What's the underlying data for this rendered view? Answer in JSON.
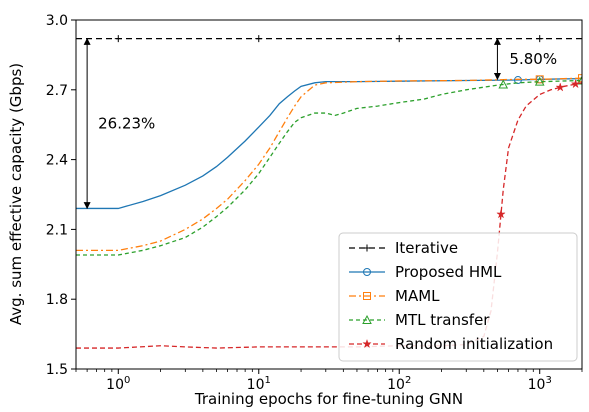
{
  "chart_data": {
    "type": "line",
    "xlabel": "Training epochs for fine-tuning GNN",
    "ylabel": "Avg. sum effective capacity (Gbps)",
    "xscale": "log",
    "xlim": [
      0.5,
      2000
    ],
    "ylim": [
      1.5,
      3.0
    ],
    "x_ticks": [
      {
        "value": 1,
        "base": "10",
        "exp": "0"
      },
      {
        "value": 10,
        "base": "10",
        "exp": "1"
      },
      {
        "value": 100,
        "base": "10",
        "exp": "2"
      },
      {
        "value": 1000,
        "base": "10",
        "exp": "3"
      }
    ],
    "y_ticks": [
      1.5,
      1.8,
      2.1,
      2.4,
      2.7,
      3.0
    ],
    "y_tick_labels": [
      "1.5",
      "1.8",
      "2.1",
      "2.4",
      "2.7",
      "3.0"
    ],
    "legend_position": "lower-right",
    "series": [
      {
        "name": "Iterative",
        "color": "#000000",
        "dash": "6,4",
        "marker": "plus",
        "points": [
          [
            0.5,
            2.92
          ],
          [
            2000,
            2.92
          ]
        ],
        "marker_x": [
          1,
          10,
          100,
          1000
        ]
      },
      {
        "name": "Proposed HML",
        "color": "#1f77b4",
        "dash": "",
        "marker": "circle",
        "points": [
          [
            0.5,
            2.19
          ],
          [
            1,
            2.19
          ],
          [
            1.5,
            2.22
          ],
          [
            2,
            2.245
          ],
          [
            3,
            2.29
          ],
          [
            4,
            2.33
          ],
          [
            5,
            2.37
          ],
          [
            6,
            2.41
          ],
          [
            8,
            2.48
          ],
          [
            10,
            2.54
          ],
          [
            12,
            2.59
          ],
          [
            14,
            2.64
          ],
          [
            16,
            2.67
          ],
          [
            18,
            2.695
          ],
          [
            20,
            2.715
          ],
          [
            25,
            2.73
          ],
          [
            30,
            2.735
          ],
          [
            50,
            2.735
          ],
          [
            100,
            2.737
          ],
          [
            300,
            2.74
          ],
          [
            700,
            2.742
          ],
          [
            1000,
            2.745
          ],
          [
            2000,
            2.748
          ]
        ],
        "marker_x": [
          700,
          1000
        ]
      },
      {
        "name": "MAML",
        "color": "#ff7f0e",
        "dash": "7,3,2,3",
        "marker": "square",
        "points": [
          [
            0.5,
            2.01
          ],
          [
            1,
            2.01
          ],
          [
            1.5,
            2.03
          ],
          [
            2,
            2.05
          ],
          [
            3,
            2.1
          ],
          [
            4,
            2.145
          ],
          [
            5,
            2.19
          ],
          [
            6,
            2.23
          ],
          [
            8,
            2.31
          ],
          [
            10,
            2.38
          ],
          [
            12,
            2.45
          ],
          [
            14,
            2.52
          ],
          [
            16,
            2.58
          ],
          [
            18,
            2.63
          ],
          [
            20,
            2.67
          ],
          [
            25,
            2.72
          ],
          [
            30,
            2.73
          ],
          [
            50,
            2.735
          ],
          [
            100,
            2.738
          ],
          [
            300,
            2.74
          ],
          [
            700,
            2.745
          ],
          [
            1000,
            2.745
          ],
          [
            2000,
            2.75
          ]
        ],
        "marker_x": [
          1000,
          2000
        ]
      },
      {
        "name": "MTL transfer",
        "color": "#2ca02c",
        "dash": "4,3",
        "marker": "triangle",
        "points": [
          [
            0.5,
            1.99
          ],
          [
            1,
            1.99
          ],
          [
            1.5,
            2.01
          ],
          [
            2,
            2.03
          ],
          [
            3,
            2.065
          ],
          [
            4,
            2.11
          ],
          [
            5,
            2.155
          ],
          [
            6,
            2.195
          ],
          [
            8,
            2.27
          ],
          [
            10,
            2.34
          ],
          [
            12,
            2.41
          ],
          [
            14,
            2.47
          ],
          [
            16,
            2.52
          ],
          [
            18,
            2.56
          ],
          [
            20,
            2.58
          ],
          [
            25,
            2.6
          ],
          [
            30,
            2.6
          ],
          [
            35,
            2.59
          ],
          [
            40,
            2.6
          ],
          [
            50,
            2.62
          ],
          [
            70,
            2.63
          ],
          [
            100,
            2.645
          ],
          [
            150,
            2.66
          ],
          [
            200,
            2.68
          ],
          [
            300,
            2.7
          ],
          [
            500,
            2.72
          ],
          [
            700,
            2.73
          ],
          [
            1000,
            2.735
          ],
          [
            2000,
            2.74
          ]
        ],
        "marker_x": [
          550,
          1000,
          2000
        ]
      },
      {
        "name": "Random initialization",
        "color": "#d62728",
        "dash": "5,3",
        "marker": "star",
        "points": [
          [
            0.5,
            1.59
          ],
          [
            1,
            1.59
          ],
          [
            2,
            1.6
          ],
          [
            3,
            1.595
          ],
          [
            5,
            1.59
          ],
          [
            10,
            1.595
          ],
          [
            50,
            1.595
          ],
          [
            100,
            1.6
          ],
          [
            200,
            1.6
          ],
          [
            300,
            1.605
          ],
          [
            400,
            1.64
          ],
          [
            450,
            1.75
          ],
          [
            500,
            2.0
          ],
          [
            550,
            2.27
          ],
          [
            600,
            2.45
          ],
          [
            700,
            2.57
          ],
          [
            800,
            2.63
          ],
          [
            1000,
            2.68
          ],
          [
            1200,
            2.7
          ],
          [
            1500,
            2.715
          ],
          [
            2000,
            2.73
          ]
        ],
        "marker_x": [
          530,
          1400,
          1800
        ]
      }
    ],
    "annotations": [
      {
        "text": "26.23%",
        "x": 0.6,
        "y_from": 2.19,
        "y_to": 2.92
      },
      {
        "text": "5.80%",
        "x": 500,
        "y_from": 2.745,
        "y_to": 2.92
      }
    ]
  }
}
